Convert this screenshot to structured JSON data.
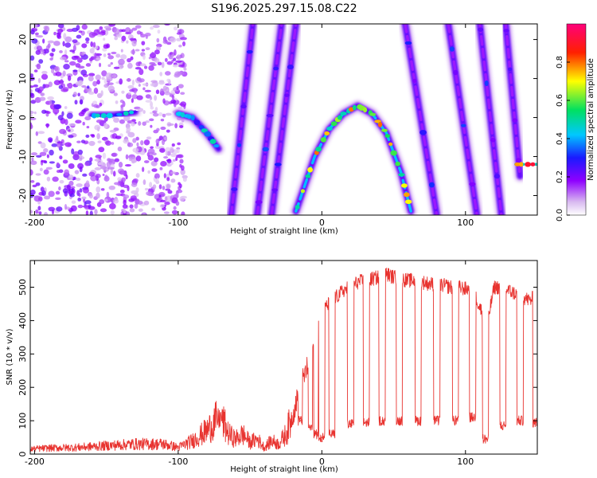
{
  "title": "S196.2025.297.15.08.C22",
  "chart_data": [
    {
      "type": "heatmap",
      "title": "",
      "xlabel": "Height of straight line (km)",
      "ylabel": "Frequency (Hz)",
      "xlim": [
        -203,
        150
      ],
      "ylim": [
        -25,
        24
      ],
      "xticks": [
        -200,
        -100,
        0,
        100
      ],
      "yticks": [
        -20,
        -10,
        0,
        10,
        20
      ],
      "colorbar": {
        "label": "Normalized spectral amplitude",
        "range": [
          0.0,
          1.0
        ],
        "ticks": [
          0.0,
          0.2,
          0.4,
          0.6,
          0.8
        ],
        "tick_labels": [
          "0.0",
          "0.2",
          "0.4",
          "0.6",
          "0.8"
        ]
      },
      "features": [
        {
          "name": "noise-region",
          "x_range": [
            -203,
            -95
          ],
          "freq_range": [
            -25,
            24
          ],
          "amplitude": 0.15
        },
        {
          "name": "dc-streak-left",
          "points": [
            [
              -160,
              0.5
            ],
            [
              -145,
              0.5
            ],
            [
              -130,
              1.5
            ]
          ],
          "amplitude": 0.45
        },
        {
          "name": "dc-streak-right",
          "points": [
            [
              -100,
              1
            ],
            [
              -90,
              0
            ],
            [
              -80,
              -4
            ],
            [
              -72,
              -8
            ]
          ],
          "amplitude": 0.45
        },
        {
          "name": "parabola-main",
          "points": [
            [
              -18,
              -24
            ],
            [
              -5,
              -10
            ],
            [
              5,
              -3
            ],
            [
              15,
              1
            ],
            [
              25,
              3
            ],
            [
              35,
              1
            ],
            [
              45,
              -4
            ],
            [
              55,
              -14
            ],
            [
              62,
              -24
            ]
          ],
          "amplitude": 0.75
        },
        {
          "name": "sloped-line-1",
          "points": [
            [
              -63,
              -25
            ],
            [
              -48,
              24
            ]
          ],
          "amplitude": 0.3
        },
        {
          "name": "sloped-line-2",
          "points": [
            [
              -45,
              -25
            ],
            [
              -28,
              24
            ]
          ],
          "amplitude": 0.3
        },
        {
          "name": "sloped-line-3",
          "points": [
            [
              -35,
              -25
            ],
            [
              -18,
              24
            ]
          ],
          "amplitude": 0.3
        },
        {
          "name": "sloped-line-4",
          "points": [
            [
              58,
              24
            ],
            [
              80,
              -25
            ]
          ],
          "amplitude": 0.3
        },
        {
          "name": "sloped-line-5",
          "points": [
            [
              88,
              24
            ],
            [
              108,
              -25
            ]
          ],
          "amplitude": 0.3
        },
        {
          "name": "sloped-line-6",
          "points": [
            [
              110,
              24
            ],
            [
              125,
              -25
            ]
          ],
          "amplitude": 0.3
        },
        {
          "name": "sloped-line-7",
          "points": [
            [
              128,
              24
            ],
            [
              138,
              -15
            ]
          ],
          "amplitude": 0.3
        },
        {
          "name": "tone-right",
          "points": [
            [
              135,
              -12
            ],
            [
              150,
              -12
            ]
          ],
          "amplitude": 0.85
        }
      ]
    },
    {
      "type": "line",
      "title": "",
      "xlabel": "Height of straight line (km)",
      "ylabel": "SNR (10 * v/v)",
      "xlim": [
        -203,
        150
      ],
      "ylim": [
        0,
        580
      ],
      "xticks": [
        -200,
        -100,
        0,
        100
      ],
      "yticks": [
        0,
        100,
        200,
        300,
        400,
        500
      ],
      "series": [
        {
          "name": "SNR",
          "color": "#e8332f",
          "x": [
            -203,
            -190,
            -170,
            -150,
            -130,
            -110,
            -100,
            -90,
            -80,
            -75,
            -70,
            -65,
            -60,
            -55,
            -50,
            -45,
            -40,
            -35,
            -30,
            -25,
            -20,
            -15,
            -10,
            -8,
            -6,
            -4,
            -2,
            0,
            5,
            10,
            15,
            20,
            25,
            30,
            35,
            40,
            45,
            50,
            55,
            60,
            65,
            70,
            75,
            80,
            85,
            90,
            95,
            100,
            105,
            110,
            115,
            120,
            125,
            130,
            135,
            140,
            145,
            150
          ],
          "values": [
            15,
            18,
            20,
            25,
            30,
            30,
            20,
            40,
            70,
            95,
            110,
            60,
            45,
            60,
            35,
            45,
            20,
            40,
            30,
            60,
            120,
            200,
            260,
            300,
            320,
            350,
            400,
            430,
            450,
            470,
            490,
            500,
            515,
            520,
            525,
            530,
            540,
            530,
            525,
            520,
            520,
            515,
            510,
            510,
            505,
            500,
            500,
            495,
            495,
            440,
            390,
            500,
            500,
            490,
            480,
            470,
            460,
            480
          ]
        }
      ],
      "dips": [
        {
          "x": -15,
          "value": 100
        },
        {
          "x": -8,
          "value": 80
        },
        {
          "x": -4,
          "value": 60
        },
        {
          "x": 0,
          "value": 50
        },
        {
          "x": 7,
          "value": 60
        },
        {
          "x": 20,
          "value": 90
        },
        {
          "x": 31,
          "value": 95
        },
        {
          "x": 42,
          "value": 100
        },
        {
          "x": 54,
          "value": 100
        },
        {
          "x": 67,
          "value": 100
        },
        {
          "x": 80,
          "value": 100
        },
        {
          "x": 93,
          "value": 100
        },
        {
          "x": 105,
          "value": 110
        },
        {
          "x": 114,
          "value": 45
        },
        {
          "x": 126,
          "value": 85
        },
        {
          "x": 138,
          "value": 100
        },
        {
          "x": 149,
          "value": 95
        }
      ]
    }
  ]
}
